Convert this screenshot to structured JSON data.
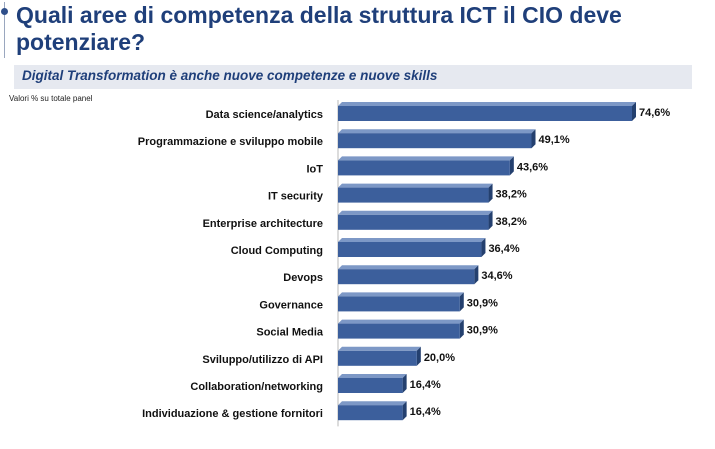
{
  "header": {
    "title": "Quali aree di competenza della struttura ICT il CIO deve potenziare?",
    "subtitle": "Digital Transformation è anche nuove competenze e nuove skills",
    "note": "Valori % su totale panel"
  },
  "chart_data": {
    "type": "bar",
    "orientation": "horizontal",
    "categories": [
      "Data science/analytics",
      "Programmazione e sviluppo mobile",
      "IoT",
      "IT security",
      "Enterprise architecture",
      "Cloud Computing",
      "Devops",
      "Governance",
      "Social Media",
      "Sviluppo/utilizzo di API",
      "Collaboration/networking",
      "Individuazione & gestione fornitori"
    ],
    "values": [
      74.6,
      49.1,
      43.6,
      38.2,
      38.2,
      36.4,
      34.6,
      30.9,
      30.9,
      20.0,
      16.4,
      16.4
    ],
    "value_labels": [
      "74,6%",
      "49,1%",
      "43,6%",
      "38,2%",
      "38,2%",
      "36,4%",
      "34,6%",
      "30,9%",
      "30,9%",
      "20,0%",
      "16,4%",
      "16,4%"
    ],
    "xlim": [
      0,
      80
    ],
    "grid": false,
    "bar_color": "#3c5f9c",
    "bar_top_color": "#7d98c6",
    "bar_shade_color": "#24406f"
  }
}
